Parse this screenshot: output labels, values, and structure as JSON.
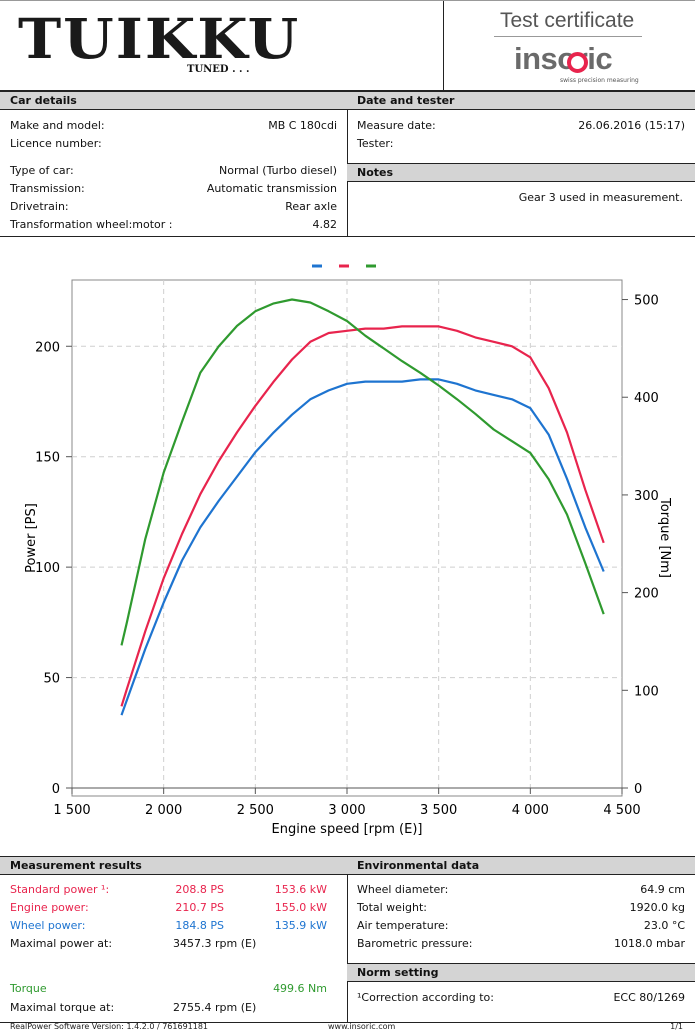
{
  "header": {
    "logo_text": "TUIKKU",
    "logo_sub": "TUNED . . .",
    "cert_title": "Test certificate",
    "brand": "insoric",
    "brand_tagline": "swiss precision measuring"
  },
  "car": {
    "title": "Car details",
    "make_label": "Make and model:",
    "make_value": "MB C 180cdi",
    "licence_label": "Licence number:",
    "type_label": "Type of car:",
    "type_value": "Normal (Turbo diesel)",
    "trans_label": "Transmission:",
    "trans_value": "Automatic transmission",
    "drive_label": "Drivetrain:",
    "drive_value": "Rear axle",
    "ratio_label": "Transformation wheel:motor :",
    "ratio_value": "4.82"
  },
  "date": {
    "title": "Date and tester",
    "measure_label": "Measure date:",
    "measure_value": "26.06.2016 (15:17)",
    "tester_label": "Tester:"
  },
  "notes": {
    "title": "Notes",
    "text": "Gear 3 used in measurement."
  },
  "results": {
    "title": "Measurement results",
    "std_label": "Standard power ¹:",
    "std_ps": "208.8 PS",
    "std_kw": "153.6 kW",
    "eng_label": "Engine power:",
    "eng_ps": "210.7 PS",
    "eng_kw": "155.0 kW",
    "wheel_label": "Wheel power:",
    "wheel_ps": "184.8 PS",
    "wheel_kw": "135.9 kW",
    "maxp_label": "Maximal power at:",
    "maxp_value": "3457.3 rpm (E)",
    "torque_label": "Torque",
    "torque_value": "499.6 Nm",
    "maxt_label": "Maximal torque at:",
    "maxt_value": "2755.4 rpm (E)"
  },
  "env": {
    "title": "Environmental data",
    "wheel_label": "Wheel diameter:",
    "wheel_value": "64.9 cm",
    "weight_label": "Total weight:",
    "weight_value": "1920.0 kg",
    "air_label": "Air temperature:",
    "air_value": "23.0 °C",
    "baro_label": "Barometric pressure:",
    "baro_value": "1018.0 mbar"
  },
  "norm": {
    "title": "Norm setting",
    "label": "¹Correction according to:",
    "value": "ECC 80/1269"
  },
  "footer": {
    "software": "RealPower Software Version: 1.4.2.0 / 761691181",
    "url": "www.insoric.com",
    "page": "1/1"
  },
  "colors": {
    "red": "#e8244d",
    "blue": "#1e74d0",
    "green": "#2f9a2f"
  },
  "chart_data": {
    "type": "line",
    "xlabel": "Engine speed [rpm (E)]",
    "ylabel": "Power [PS]",
    "y2label": "Torque [Nm]",
    "xlim": [
      1500,
      4500
    ],
    "ylim": [
      0,
      230
    ],
    "y2lim": [
      0,
      520
    ],
    "xticks": [
      1500,
      2000,
      2500,
      3000,
      3500,
      4000,
      4500
    ],
    "xtick_labels": [
      "1 500",
      "2 000",
      "2 500",
      "3 000",
      "3 500",
      "4 000",
      "4 500"
    ],
    "yticks": [
      0,
      50,
      100,
      150,
      200
    ],
    "y2ticks": [
      0,
      100,
      200,
      300,
      400,
      500
    ],
    "grid": true,
    "legend": "top-center",
    "series": [
      {
        "color": "#1e74d0",
        "axis": "left",
        "x": [
          1770,
          1800,
          1900,
          2000,
          2100,
          2200,
          2300,
          2400,
          2500,
          2600,
          2700,
          2800,
          2900,
          3000,
          3100,
          3200,
          3300,
          3400,
          3500,
          3600,
          3700,
          3800,
          3900,
          4000,
          4100,
          4200,
          4300,
          4400
        ],
        "y": [
          33,
          40,
          63,
          84,
          103,
          118,
          130,
          141,
          152,
          161,
          169,
          176,
          180,
          183,
          184,
          184,
          184,
          185,
          185,
          183,
          180,
          178,
          176,
          172,
          160,
          140,
          118,
          98
        ]
      },
      {
        "color": "#e8244d",
        "axis": "left",
        "x": [
          1770,
          1800,
          1900,
          2000,
          2100,
          2200,
          2300,
          2400,
          2500,
          2600,
          2700,
          2800,
          2900,
          3000,
          3100,
          3200,
          3300,
          3400,
          3500,
          3600,
          3700,
          3800,
          3900,
          4000,
          4100,
          4200,
          4300,
          4400
        ],
        "y": [
          37,
          45,
          71,
          95,
          115,
          133,
          148,
          161,
          173,
          184,
          194,
          202,
          206,
          207,
          208,
          208,
          209,
          209,
          209,
          207,
          204,
          202,
          200,
          195,
          181,
          161,
          135,
          111
        ]
      },
      {
        "color": "#2f9a2f",
        "axis": "right",
        "x": [
          1770,
          1800,
          1900,
          2000,
          2100,
          2200,
          2300,
          2400,
          2500,
          2600,
          2700,
          2800,
          2900,
          3000,
          3100,
          3200,
          3300,
          3400,
          3500,
          3600,
          3700,
          3800,
          3900,
          4000,
          4100,
          4200,
          4300,
          4400
        ],
        "y": [
          146,
          170,
          255,
          323,
          375,
          425,
          452,
          473,
          488,
          496,
          500,
          497,
          488,
          478,
          463,
          450,
          437,
          425,
          412,
          398,
          383,
          367,
          355,
          343,
          316,
          280,
          230,
          178
        ]
      }
    ]
  }
}
